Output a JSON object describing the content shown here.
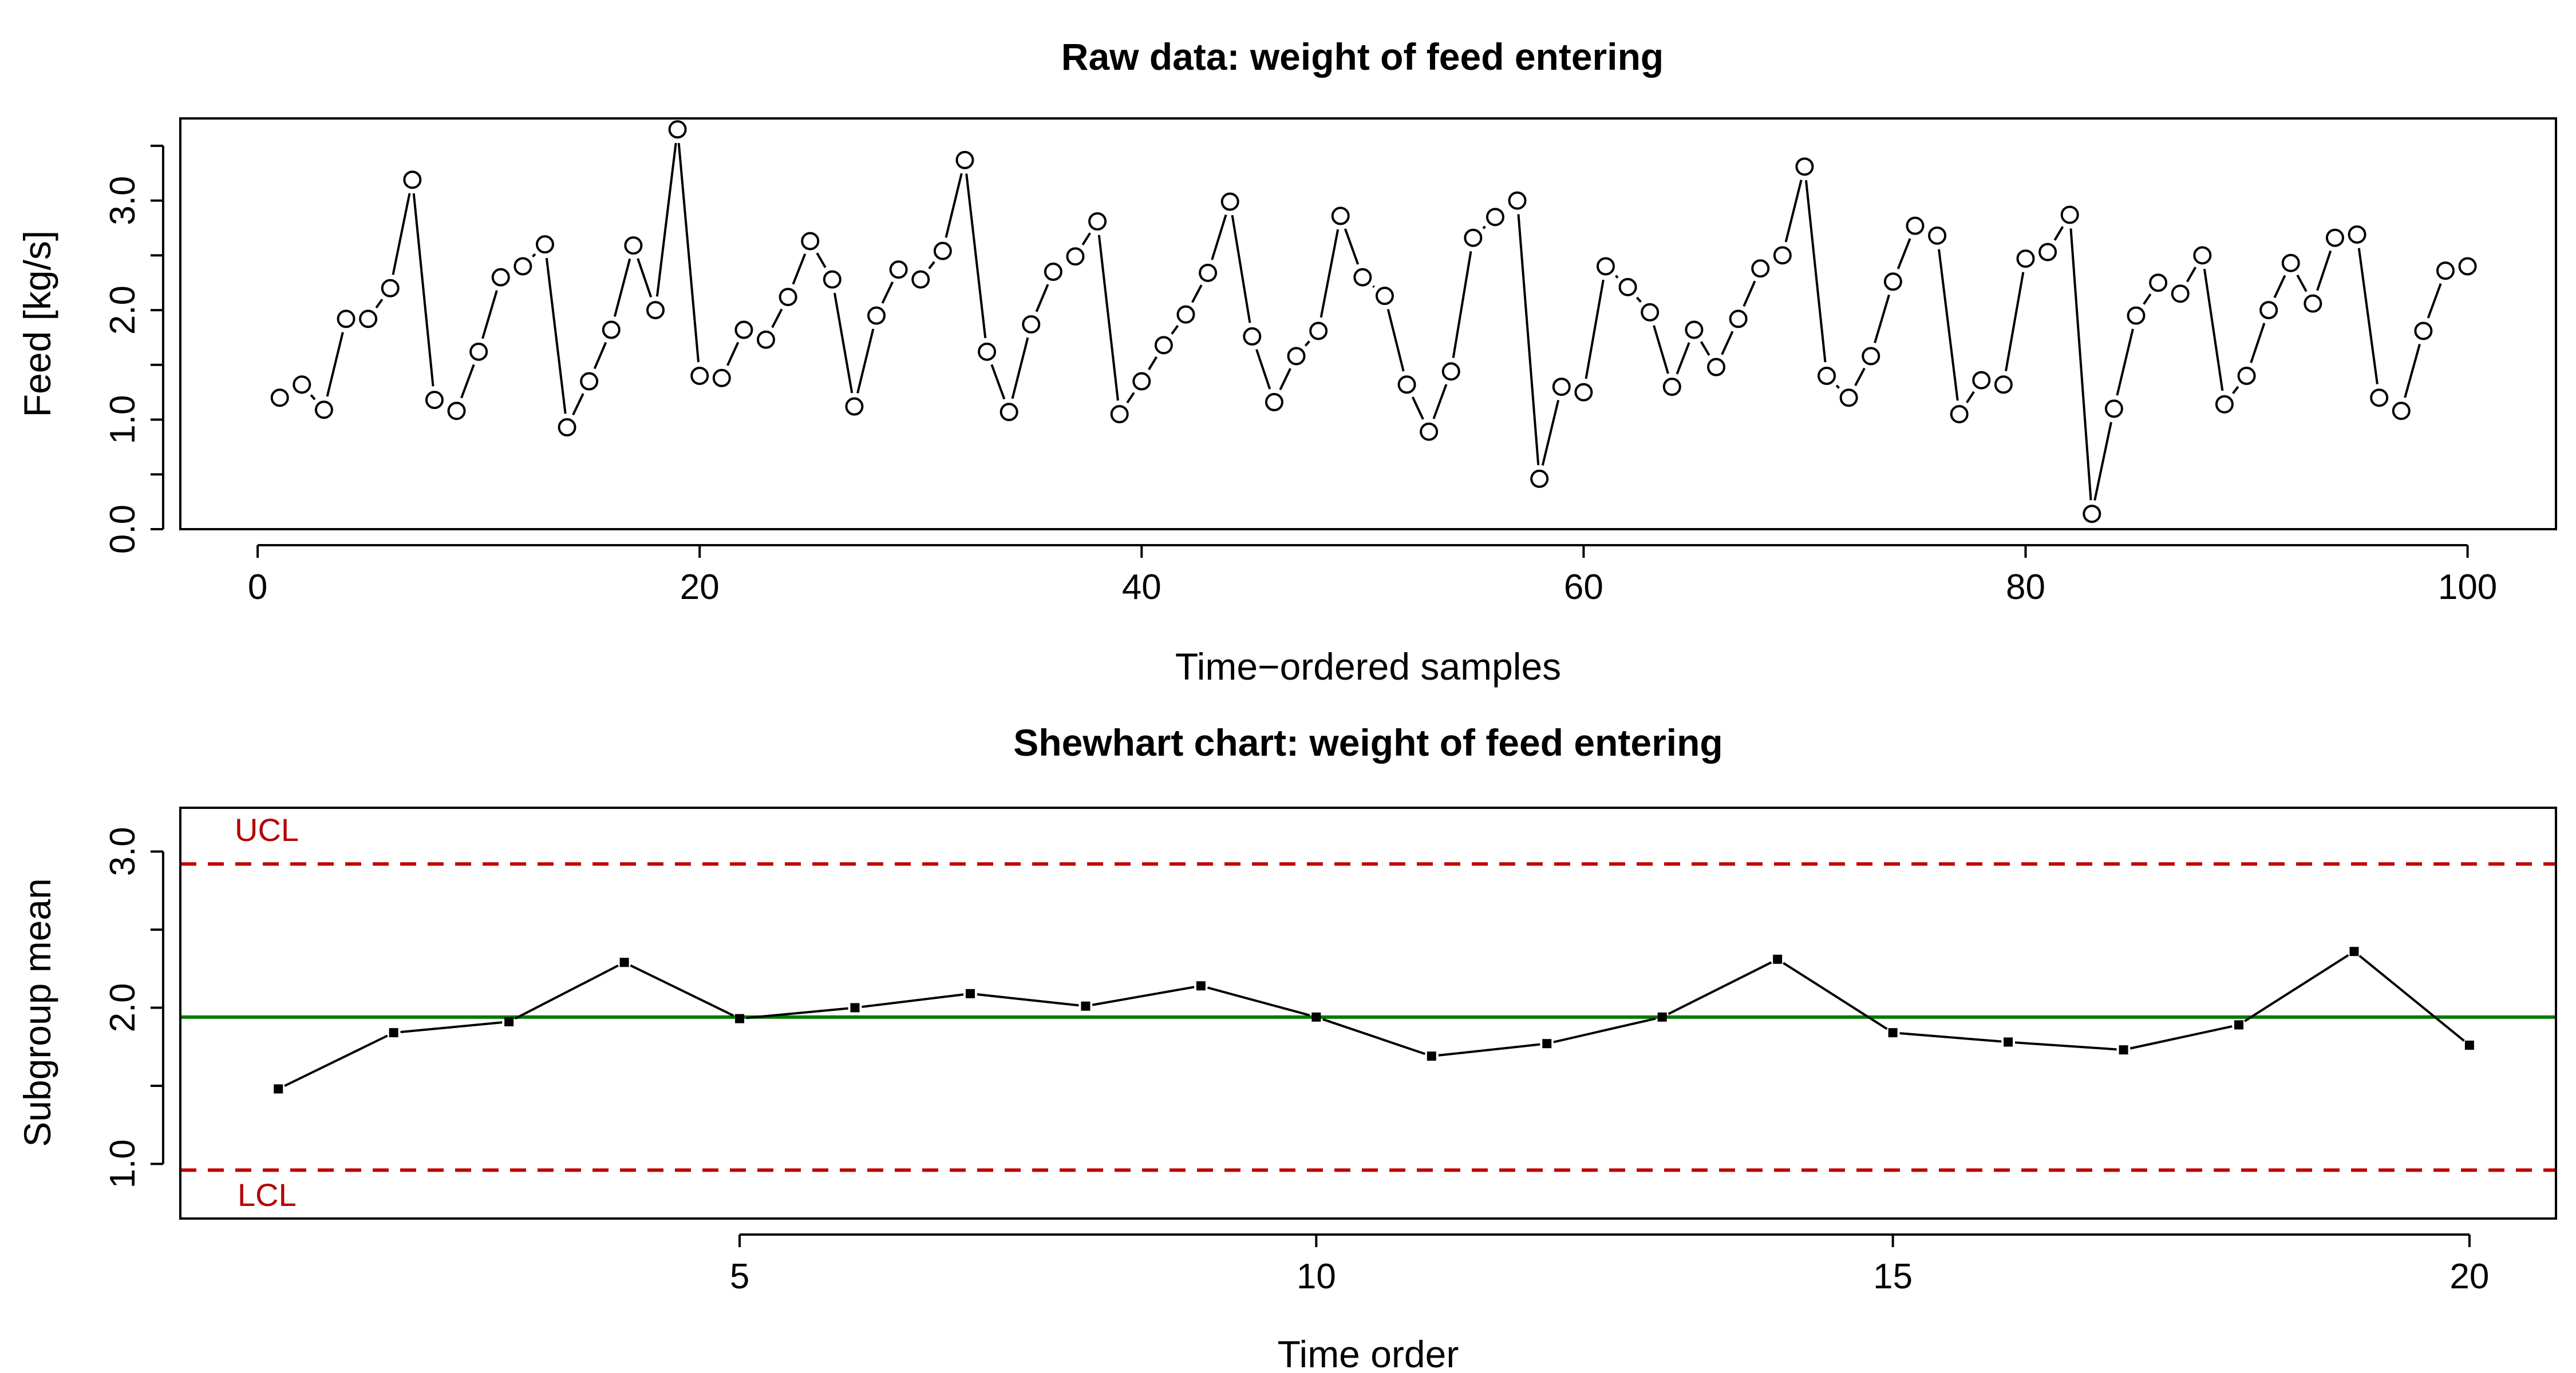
{
  "chart_data": [
    {
      "type": "line",
      "title": "Raw data: weight of feed entering",
      "xlabel": "Time−ordered samples",
      "ylabel": "Feed [kg/s]",
      "xlim": [
        -3.5,
        104
      ],
      "ylim": [
        0,
        3.75
      ],
      "grid": false,
      "x_ticks": [
        0,
        20,
        40,
        60,
        80,
        100
      ],
      "x_tick_labels": [
        "0",
        "20",
        "40",
        "60",
        "80",
        "100"
      ],
      "y_ticks": [
        0,
        0.5,
        1,
        1.5,
        2,
        2.5,
        3,
        3.5
      ],
      "y_tick_labels": [
        "0.0",
        "",
        "1.0",
        "",
        "2.0",
        "",
        "3.0",
        ""
      ],
      "marker": "open-circle",
      "series": [
        {
          "values": [
            1.2,
            1.32,
            1.09,
            1.92,
            1.92,
            2.2,
            3.19,
            1.18,
            1.08,
            1.62,
            2.3,
            2.4,
            2.6,
            0.93,
            1.35,
            1.82,
            2.59,
            2.0,
            3.65,
            1.4,
            1.38,
            1.82,
            1.73,
            2.12,
            2.63,
            2.28,
            1.12,
            1.95,
            2.37,
            2.28,
            2.54,
            3.37,
            1.62,
            1.07,
            1.87,
            2.35,
            2.49,
            2.81,
            1.05,
            1.35,
            1.68,
            1.96,
            2.34,
            2.99,
            1.76,
            1.16,
            1.58,
            1.81,
            2.86,
            2.3,
            2.13,
            1.32,
            0.89,
            1.44,
            2.66,
            2.85,
            3.0,
            0.46,
            1.3,
            1.25,
            2.4,
            2.21,
            1.98,
            1.3,
            1.82,
            1.48,
            1.92,
            2.38,
            2.5,
            3.31,
            1.4,
            1.2,
            1.58,
            2.26,
            2.77,
            2.68,
            1.05,
            1.36,
            1.32,
            2.47,
            2.53,
            2.87,
            0.14,
            1.1,
            1.95,
            2.25,
            2.15,
            2.5,
            1.14,
            1.4,
            2.0,
            2.43,
            2.06,
            2.66,
            2.69,
            1.2,
            1.08,
            1.81,
            2.36,
            2.4
          ]
        }
      ]
    },
    {
      "type": "line",
      "title": "Shewhart chart: weight of feed entering",
      "xlabel": "Time order",
      "ylabel": "Subgroup mean",
      "xlim": [
        0.15,
        20.75
      ],
      "ylim": [
        0.65,
        3.28
      ],
      "grid": false,
      "x_ticks": [
        5,
        10,
        15,
        20
      ],
      "x_tick_labels": [
        "5",
        "10",
        "15",
        "20"
      ],
      "y_ticks": [
        1,
        1.5,
        2,
        2.5,
        3
      ],
      "y_tick_labels": [
        "1.0",
        "",
        "2.0",
        "",
        "3.0"
      ],
      "marker": "filled-square",
      "series": [
        {
          "values": [
            1.48,
            1.84,
            1.91,
            2.29,
            1.93,
            2.0,
            2.09,
            2.01,
            2.14,
            1.94,
            1.69,
            1.77,
            1.94,
            2.31,
            1.84,
            1.78,
            1.73,
            1.89,
            2.36,
            1.76
          ]
        }
      ],
      "center_line": {
        "value": 1.94,
        "color": "#007a00"
      },
      "limits": [
        {
          "label": "UCL",
          "value": 2.92,
          "color": "#c00000",
          "style": "dashed"
        },
        {
          "label": "LCL",
          "value": 0.96,
          "color": "#c00000",
          "style": "dashed"
        }
      ]
    }
  ]
}
